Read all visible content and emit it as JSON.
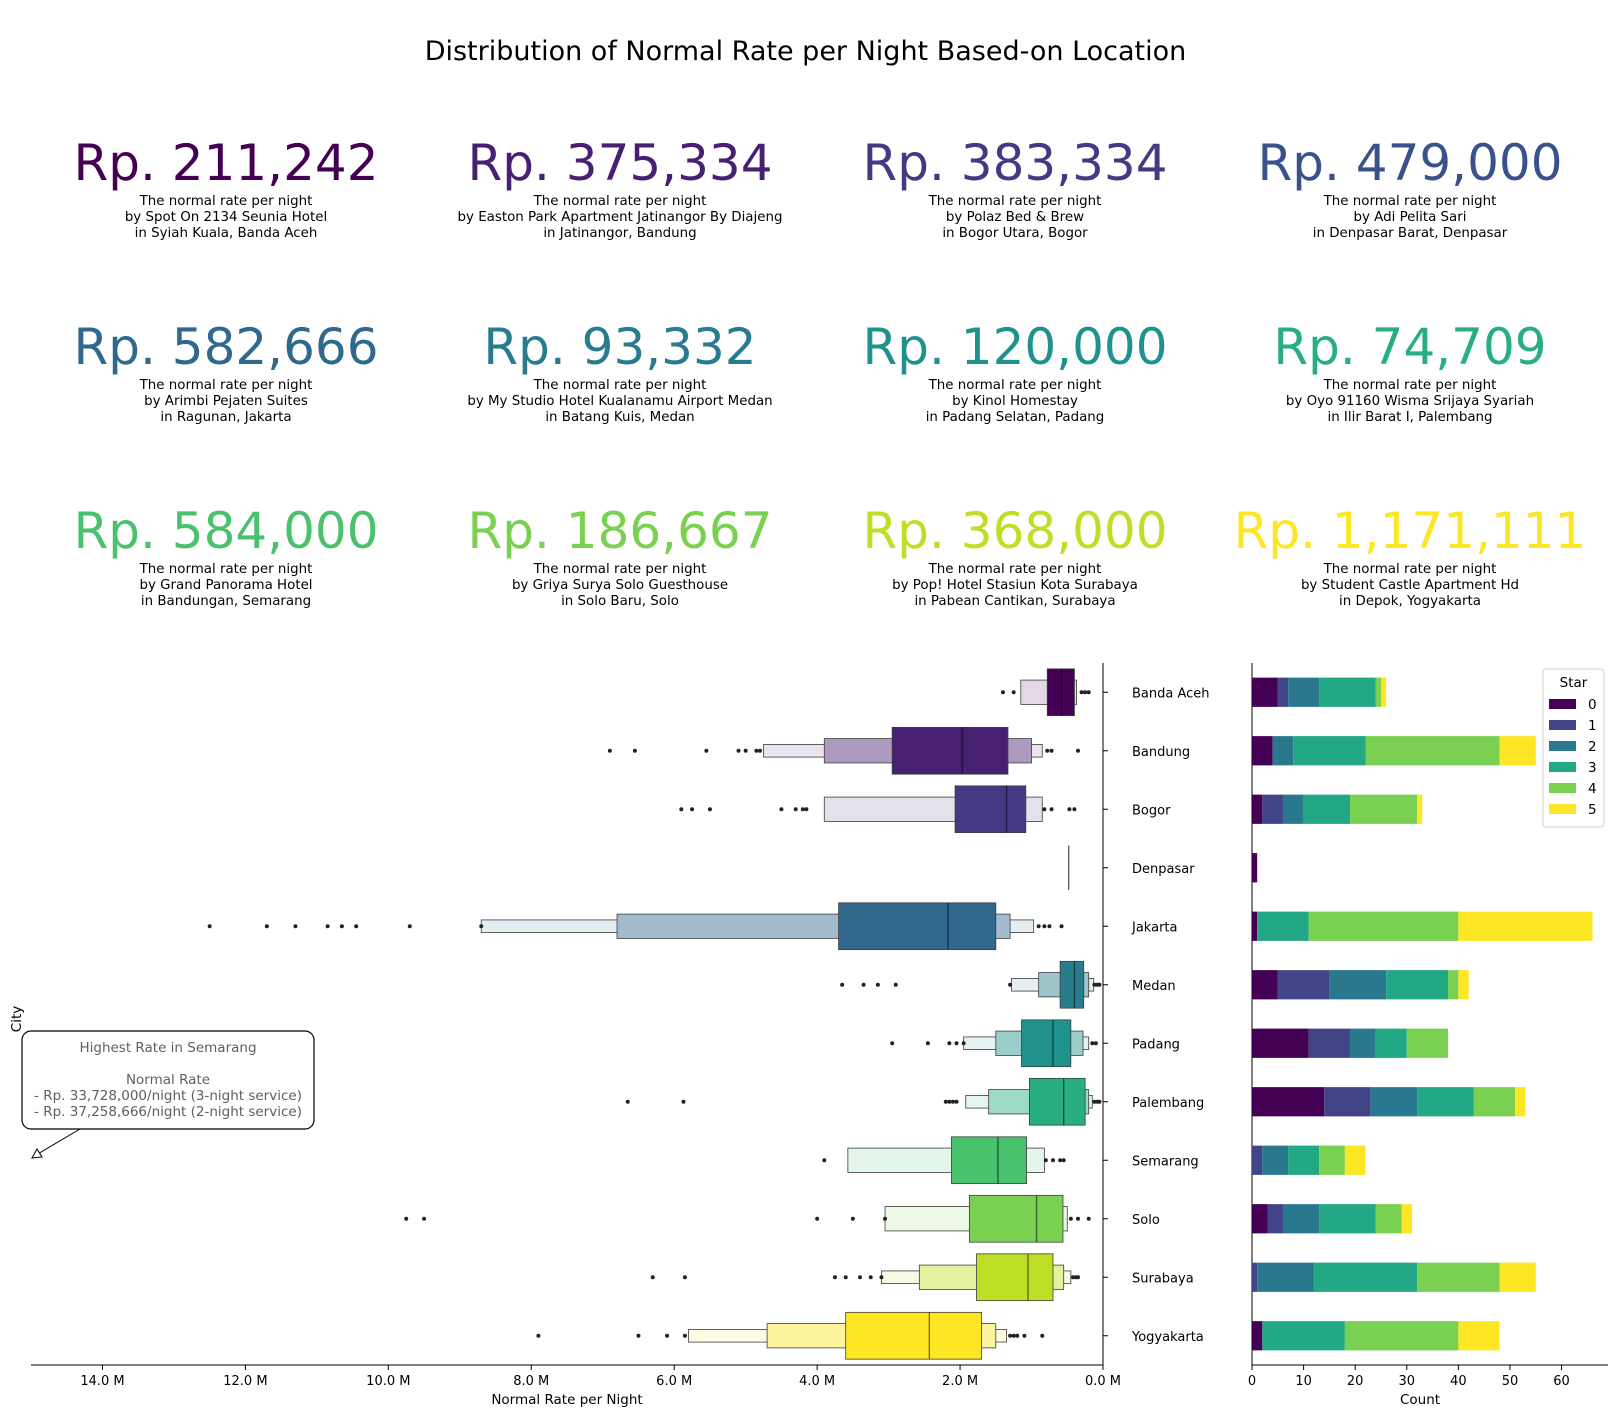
{
  "title": "Distribution of Normal Rate per Night Based-on Location",
  "cards": [
    {
      "rate": "Rp. 211,242",
      "line1": "The normal rate per night",
      "line2": "by Spot On 2134 Seunia Hotel",
      "line3": "in Syiah Kuala, Banda Aceh",
      "color": "#440154"
    },
    {
      "rate": "Rp. 375,334",
      "line1": "The normal rate per night",
      "line2": "by Easton Park Apartment Jatinangor By Diajeng",
      "line3": "in Jatinangor, Bandung",
      "color": "#482071"
    },
    {
      "rate": "Rp. 383,334",
      "line1": "The normal rate per night",
      "line2": "by Polaz  Bed & Brew",
      "line3": "in Bogor Utara, Bogor",
      "color": "#433a83"
    },
    {
      "rate": "Rp. 479,000",
      "line1": "The normal rate per night",
      "line2": "by Adi Pelita Sari",
      "line3": "in Denpasar Barat, Denpasar",
      "color": "#3a528b"
    },
    {
      "rate": "Rp. 582,666",
      "line1": "The normal rate per night",
      "line2": "by Arimbi Pejaten Suites",
      "line3": "in Ragunan, Jakarta",
      "color": "#30688e"
    },
    {
      "rate": "Rp. 93,332",
      "line1": "The normal rate per night",
      "line2": "by My Studio Hotel Kualanamu Airport Medan",
      "line3": "in Batang Kuis, Medan",
      "color": "#287c8e"
    },
    {
      "rate": "Rp. 120,000",
      "line1": "The normal rate per night",
      "line2": "by Kinol Homestay",
      "line3": "in Padang Selatan, Padang",
      "color": "#20928c"
    },
    {
      "rate": "Rp. 74,709",
      "line1": "The normal rate per night",
      "line2": "by Oyo 91160 Wisma Srijaya Syariah",
      "line3": "in Ilir Barat I, Palembang",
      "color": "#28ae80"
    },
    {
      "rate": "Rp. 584,000",
      "line1": "The normal rate per night",
      "line2": "by Grand Panorama Hotel",
      "line3": "in Bandungan, Semarang",
      "color": "#4ac16d"
    },
    {
      "rate": "Rp. 186,667",
      "line1": "The normal rate per night",
      "line2": "by Griya Surya Solo Guesthouse",
      "line3": "in Solo Baru, Solo",
      "color": "#7ad151"
    },
    {
      "rate": "Rp. 368,000",
      "line1": "The normal rate per night",
      "line2": "by Pop! Hotel Stasiun Kota Surabaya",
      "line3": "in Pabean Cantikan, Surabaya",
      "color": "#bddf26"
    },
    {
      "rate": "Rp. 1,171,111",
      "line1": "The normal rate per night",
      "line2": "by Student Castle Apartment Hd",
      "line3": "in Depok, Yogyakarta",
      "color": "#fde725"
    }
  ],
  "annotation": {
    "line1": "Highest Rate in Semarang",
    "line2": "Normal Rate",
    "line3": "- Rp. 33,728,000/night (3-night service)",
    "line4": "- Rp. 37,258,666/night (2-night service)"
  },
  "chart_data": [
    {
      "type": "boxen",
      "title": "",
      "xlabel": "Normal Rate per Night",
      "ylabel": "City",
      "xlim": [
        15.0,
        0.0
      ],
      "x_unit": "M",
      "x_ticks": [
        14,
        12,
        10,
        8,
        6,
        4,
        2,
        0
      ],
      "x_tick_labels": [
        "14.0 M",
        "12.0 M",
        "10.0 M",
        "8.0 M",
        "6.0 M",
        "4.0 M",
        "2.0 M",
        "0.0 M"
      ],
      "categories": [
        "Banda Aceh",
        "Bandung",
        "Bogor",
        "Denpasar",
        "Jakarta",
        "Medan",
        "Padang",
        "Palembang",
        "Semarang",
        "Solo",
        "Surabaya",
        "Yogyakarta"
      ],
      "series": [
        {
          "name": "Banda Aceh",
          "color": "#440154",
          "median": 0.58,
          "boxes": [
            [
              0.4,
              0.78
            ],
            [
              0.37,
              1.15
            ]
          ],
          "outliers": [
            1.25,
            1.4,
            0.3,
            0.25,
            0.2
          ]
        },
        {
          "name": "Bandung",
          "color": "#482071",
          "median": 1.97,
          "boxes": [
            [
              1.33,
              2.95
            ],
            [
              1.0,
              3.9
            ],
            [
              0.85,
              4.75
            ]
          ],
          "outliers": [
            6.9,
            6.55,
            5.55,
            5.1,
            5.0,
            4.85,
            4.8,
            0.78,
            0.72,
            0.35
          ]
        },
        {
          "name": "Bogor",
          "color": "#433a83",
          "median": 1.35,
          "boxes": [
            [
              1.08,
              2.07
            ],
            [
              0.85,
              3.9
            ]
          ],
          "outliers": [
            5.9,
            5.75,
            5.5,
            4.5,
            4.3,
            4.2,
            4.15,
            0.82,
            0.72,
            0.47,
            0.4
          ]
        },
        {
          "name": "Denpasar",
          "color": "#3a528b",
          "median": 0.48,
          "boxes": [],
          "outliers": []
        },
        {
          "name": "Jakarta",
          "color": "#30688e",
          "median": 2.17,
          "boxes": [
            [
              1.5,
              3.7
            ],
            [
              1.3,
              6.8
            ],
            [
              0.97,
              8.7
            ]
          ],
          "outliers": [
            12.5,
            11.7,
            11.3,
            10.85,
            10.65,
            10.45,
            9.7,
            8.7,
            0.9,
            0.82,
            0.75,
            0.58
          ]
        },
        {
          "name": "Medan",
          "color": "#287c8e",
          "median": 0.4,
          "boxes": [
            [
              0.27,
              0.6
            ],
            [
              0.2,
              0.9
            ],
            [
              0.13,
              1.28
            ]
          ],
          "outliers": [
            3.65,
            3.35,
            3.15,
            2.9,
            1.3,
            0.12,
            0.08,
            0.05
          ]
        },
        {
          "name": "Padang",
          "color": "#20928c",
          "median": 0.7,
          "boxes": [
            [
              0.45,
              1.14
            ],
            [
              0.28,
              1.5
            ],
            [
              0.2,
              1.95
            ]
          ],
          "outliers": [
            2.95,
            2.45,
            2.15,
            2.05,
            1.95,
            0.15,
            0.1
          ]
        },
        {
          "name": "Palembang",
          "color": "#28ae80",
          "median": 0.55,
          "boxes": [
            [
              0.25,
              1.03
            ],
            [
              0.2,
              1.6
            ],
            [
              0.15,
              1.92
            ]
          ],
          "outliers": [
            6.65,
            5.87,
            2.2,
            2.15,
            2.1,
            2.05,
            0.12,
            0.08,
            0.05
          ]
        },
        {
          "name": "Semarang",
          "color": "#4ac16d",
          "median": 1.47,
          "boxes": [
            [
              1.07,
              2.12
            ],
            [
              0.82,
              3.57
            ]
          ],
          "outliers": [
            3.9,
            0.8,
            0.7,
            0.6,
            0.55
          ]
        },
        {
          "name": "Solo",
          "color": "#7ad151",
          "median": 0.93,
          "boxes": [
            [
              0.56,
              1.87
            ],
            [
              0.5,
              3.05
            ]
          ],
          "outliers": [
            9.75,
            9.5,
            4.0,
            3.5,
            3.05,
            0.45,
            0.35,
            0.2
          ]
        },
        {
          "name": "Surabaya",
          "color": "#bddf26",
          "median": 1.05,
          "boxes": [
            [
              0.7,
              1.77
            ],
            [
              0.55,
              2.57
            ],
            [
              0.45,
              3.1
            ]
          ],
          "outliers": [
            6.3,
            5.85,
            3.75,
            3.6,
            3.4,
            3.25,
            3.1,
            0.42,
            0.38,
            0.35
          ]
        },
        {
          "name": "Yogyakarta",
          "color": "#fde725",
          "median": 2.43,
          "boxes": [
            [
              1.7,
              3.6
            ],
            [
              1.5,
              4.7
            ],
            [
              1.35,
              5.8
            ]
          ],
          "outliers": [
            7.9,
            6.5,
            6.1,
            5.85,
            1.3,
            1.25,
            1.2,
            1.1,
            0.85
          ]
        }
      ]
    },
    {
      "type": "stacked-barh",
      "title": "",
      "xlabel": "Count",
      "ylabel": "",
      "xlim": [
        0,
        69
      ],
      "x_ticks": [
        0,
        10,
        20,
        30,
        40,
        50,
        60
      ],
      "legend_title": "Star",
      "legend_position": "top-right",
      "categories": [
        "Banda Aceh",
        "Bandung",
        "Bogor",
        "Denpasar",
        "Jakarta",
        "Medan",
        "Padang",
        "Palembang",
        "Semarang",
        "Solo",
        "Surabaya",
        "Yogyakarta"
      ],
      "series": [
        {
          "name": "0",
          "color": "#440154",
          "values": [
            5,
            4,
            2,
            1,
            1,
            5,
            11,
            14,
            0,
            3,
            0,
            2
          ]
        },
        {
          "name": "1",
          "color": "#414487",
          "values": [
            2,
            0,
            4,
            0,
            0,
            10,
            8,
            9,
            2,
            3,
            1,
            0
          ]
        },
        {
          "name": "2",
          "color": "#2a788e",
          "values": [
            6,
            4,
            4,
            0,
            0,
            11,
            5,
            9,
            5,
            7,
            11,
            0
          ]
        },
        {
          "name": "3",
          "color": "#22a884",
          "values": [
            11,
            14,
            9,
            0,
            10,
            12,
            6,
            11,
            6,
            11,
            20,
            16
          ]
        },
        {
          "name": "4",
          "color": "#7ad151",
          "values": [
            1,
            26,
            13,
            0,
            29,
            2,
            8,
            8,
            5,
            5,
            16,
            22
          ]
        },
        {
          "name": "5",
          "color": "#fde725",
          "values": [
            1,
            7,
            1,
            0,
            26,
            2,
            0,
            2,
            4,
            2,
            7,
            8
          ]
        }
      ]
    }
  ]
}
